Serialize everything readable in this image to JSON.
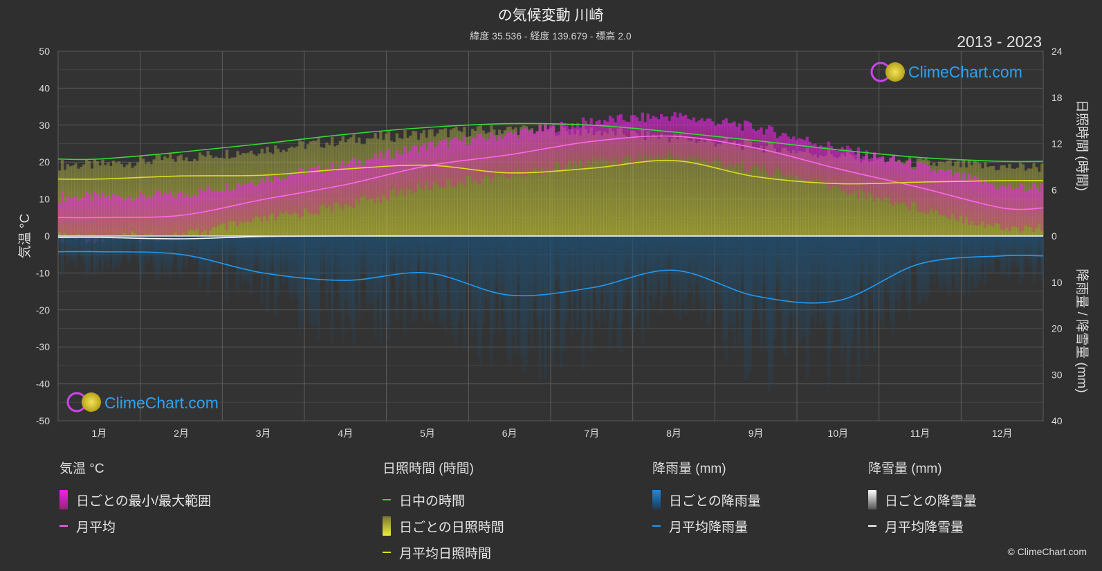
{
  "title": "の気候変動 川崎",
  "subtitle": "緯度 35.536 - 経度 139.679 - 標高 2.0",
  "period": "2013 - 2023",
  "watermark": "ClimeChart.com",
  "copyright": "© ClimeChart.com",
  "chart_data": {
    "type": "line",
    "categories": [
      "1月",
      "2月",
      "3月",
      "4月",
      "5月",
      "6月",
      "7月",
      "8月",
      "9月",
      "10月",
      "11月",
      "12月"
    ],
    "axes": {
      "y_left": {
        "label": "気温 °C",
        "ticks": [
          50,
          40,
          30,
          20,
          10,
          0,
          -10,
          -20,
          -30,
          -40,
          -50
        ],
        "range": [
          -50,
          50
        ]
      },
      "y_right_top": {
        "label": "日照時間 (時間)",
        "ticks": [
          24,
          18,
          12,
          6,
          0
        ],
        "range": [
          0,
          24
        ]
      },
      "y_right_bottom": {
        "label": "降雨量 / 降雪量 (mm)",
        "ticks": [
          0,
          10,
          20,
          30,
          40
        ],
        "range": [
          0,
          40
        ]
      }
    },
    "grid": true,
    "series": [
      {
        "name": "月平均",
        "unit": "°C",
        "color": "#ff66ee",
        "values": [
          5.0,
          5.6,
          9.9,
          13.9,
          19.0,
          22.0,
          25.6,
          27.0,
          23.8,
          18.2,
          13.1,
          7.6
        ]
      },
      {
        "name": "日中の時間",
        "unit": "時間",
        "color": "#33dd33",
        "values": [
          10.0,
          10.9,
          12.0,
          13.2,
          14.1,
          14.6,
          14.4,
          13.5,
          12.4,
          11.2,
          10.2,
          9.7
        ]
      },
      {
        "name": "月平均日照時間",
        "unit": "時間",
        "color": "#dddd22",
        "values": [
          7.4,
          7.8,
          7.9,
          8.7,
          9.2,
          8.2,
          8.8,
          9.8,
          7.7,
          6.8,
          7.0,
          7.2
        ]
      },
      {
        "name": "月平均降雨量",
        "unit": "mm",
        "color": "#2299ee",
        "values": [
          3.4,
          4.0,
          8.0,
          9.6,
          8.0,
          12.8,
          11.2,
          7.4,
          13.0,
          14.0,
          6.0,
          4.3
        ]
      },
      {
        "name": "月平均降雪量",
        "unit": "mm",
        "color": "#ffffff",
        "values": [
          0.3,
          0.6,
          0.1,
          0,
          0,
          0,
          0,
          0,
          0,
          0,
          0,
          0
        ]
      }
    ],
    "legend": {
      "groups": [
        {
          "heading": "気温 °C",
          "items": [
            {
              "label": "日ごとの最小/最大範囲",
              "swatch": "bar",
              "color": "#ee22ee"
            },
            {
              "label": "月平均",
              "swatch": "line",
              "color": "#ff66ee"
            }
          ]
        },
        {
          "heading": "日照時間 (時間)",
          "items": [
            {
              "label": "日中の時間",
              "swatch": "line",
              "color": "#33dd33"
            },
            {
              "label": "日ごとの日照時間",
              "swatch": "bar",
              "color": "#dddd33"
            },
            {
              "label": "月平均日照時間",
              "swatch": "line",
              "color": "#dddd22"
            }
          ]
        },
        {
          "heading": "降雨量 (mm)",
          "items": [
            {
              "label": "日ごとの降雨量",
              "swatch": "bar",
              "color": "#2288dd"
            },
            {
              "label": "月平均降雨量",
              "swatch": "line",
              "color": "#2299ee"
            }
          ]
        },
        {
          "heading": "降雪量 (mm)",
          "items": [
            {
              "label": "日ごとの降雪量",
              "swatch": "bar",
              "color": "#dddddd"
            },
            {
              "label": "月平均降雪量",
              "swatch": "line",
              "color": "#ffffff"
            }
          ]
        }
      ]
    }
  }
}
